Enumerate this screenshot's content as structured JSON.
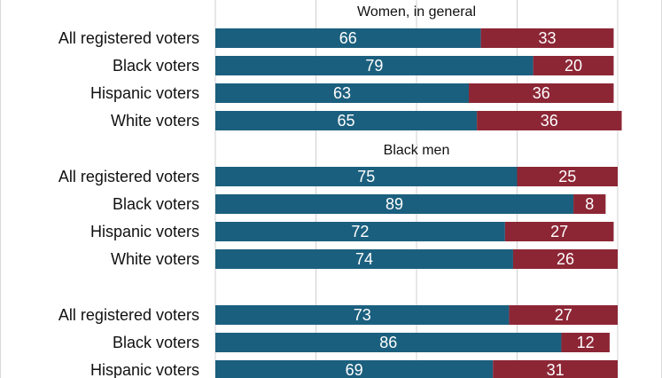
{
  "chart_data": {
    "type": "bar",
    "orientation": "horizontal",
    "stacked": true,
    "xlim": [
      0,
      100
    ],
    "grid": true,
    "colors": {
      "series_1": "#1b5f7e",
      "series_2": "#8c2635",
      "bar_label": "#ffffff",
      "text": "#111111",
      "grid": "#d0d0d0"
    },
    "groups": [
      {
        "title": "Women, in general",
        "rows": [
          {
            "label": "All registered voters",
            "values": [
              66,
              33
            ]
          },
          {
            "label": "Black voters",
            "values": [
              79,
              20
            ]
          },
          {
            "label": "Hispanic voters",
            "values": [
              63,
              36
            ]
          },
          {
            "label": "White voters",
            "values": [
              65,
              36
            ]
          }
        ]
      },
      {
        "title": "Black men",
        "rows": [
          {
            "label": "All registered voters",
            "values": [
              75,
              25
            ]
          },
          {
            "label": "Black voters",
            "values": [
              89,
              8
            ]
          },
          {
            "label": "Hispanic voters",
            "values": [
              72,
              27
            ]
          },
          {
            "label": "White voters",
            "values": [
              74,
              26
            ]
          }
        ]
      },
      {
        "title": "",
        "rows": [
          {
            "label": "All registered voters",
            "values": [
              73,
              27
            ]
          },
          {
            "label": "Black voters",
            "values": [
              86,
              12
            ]
          },
          {
            "label": "Hispanic voters",
            "values": [
              69,
              31
            ]
          }
        ]
      }
    ]
  }
}
